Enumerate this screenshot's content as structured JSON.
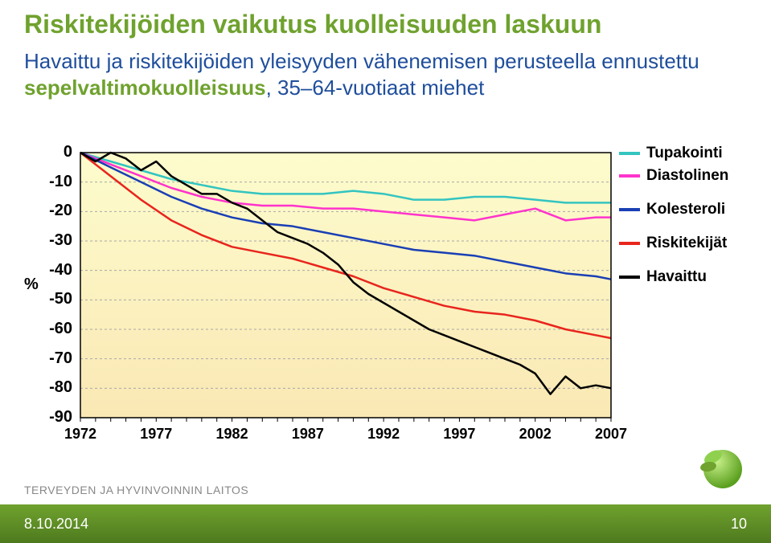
{
  "title": "Riskitekijöiden vaikutus kuolleisuuden laskuun",
  "subtitle_plain": "Havaittu ja riskitekijöiden yleisyyden vähenemisen perusteella ennustettu ",
  "subtitle_highlight": "sepelvaltimokuolleisuus",
  "subtitle_tail": ", 35–64-vuotiaat miehet",
  "footer": {
    "date": "8.10.2014",
    "page": "10"
  },
  "org": "TERVEYDEN JA HYVINVOINNIN LAITOS",
  "chart": {
    "type": "line",
    "y_unit": "%",
    "background_top": "#fdfccd",
    "background_bottom": "#fae8b4",
    "grid_color": "#a8a8a8",
    "axis_color": "#000000",
    "xlim": [
      1972,
      2007
    ],
    "ylim": [
      -90,
      0
    ],
    "ytick_step": 10,
    "yticks": [
      0,
      -10,
      -20,
      -30,
      -40,
      -50,
      -60,
      -70,
      -80,
      -90
    ],
    "xticks": [
      1972,
      1977,
      1982,
      1987,
      1992,
      1997,
      2002,
      2007
    ],
    "xtick_minor_step": 1,
    "line_width": 2.5,
    "legend": [
      {
        "label": "Tupakointi",
        "color": "#33c4c0"
      },
      {
        "label": "Diastolinen",
        "color": "#ff33cc"
      },
      {
        "label": "Kolesteroli",
        "color": "#1a3fb5"
      },
      {
        "label": "Riskitekijät",
        "color": "#e8251d"
      },
      {
        "label": "Havaittu",
        "color": "#000000"
      }
    ],
    "series": {
      "tupakointi": {
        "color": "#33c4c0",
        "data": [
          [
            1972,
            0
          ],
          [
            1974,
            -3
          ],
          [
            1976,
            -6
          ],
          [
            1978,
            -9
          ],
          [
            1980,
            -11
          ],
          [
            1982,
            -13
          ],
          [
            1984,
            -14
          ],
          [
            1986,
            -14
          ],
          [
            1988,
            -14
          ],
          [
            1990,
            -13
          ],
          [
            1992,
            -14
          ],
          [
            1994,
            -16
          ],
          [
            1996,
            -16
          ],
          [
            1998,
            -15
          ],
          [
            2000,
            -15
          ],
          [
            2002,
            -16
          ],
          [
            2004,
            -17
          ],
          [
            2006,
            -17
          ],
          [
            2007,
            -17
          ]
        ]
      },
      "diastolinen": {
        "color": "#ff33cc",
        "data": [
          [
            1972,
            0
          ],
          [
            1974,
            -4
          ],
          [
            1976,
            -8
          ],
          [
            1978,
            -12
          ],
          [
            1980,
            -15
          ],
          [
            1982,
            -17
          ],
          [
            1984,
            -18
          ],
          [
            1986,
            -18
          ],
          [
            1988,
            -19
          ],
          [
            1990,
            -19
          ],
          [
            1992,
            -20
          ],
          [
            1994,
            -21
          ],
          [
            1996,
            -22
          ],
          [
            1998,
            -23
          ],
          [
            2000,
            -21
          ],
          [
            2002,
            -19
          ],
          [
            2004,
            -23
          ],
          [
            2006,
            -22
          ],
          [
            2007,
            -22
          ]
        ]
      },
      "kolesteroli": {
        "color": "#1a3fb5",
        "data": [
          [
            1972,
            0
          ],
          [
            1974,
            -5
          ],
          [
            1976,
            -10
          ],
          [
            1978,
            -15
          ],
          [
            1980,
            -19
          ],
          [
            1982,
            -22
          ],
          [
            1984,
            -24
          ],
          [
            1986,
            -25
          ],
          [
            1988,
            -27
          ],
          [
            1990,
            -29
          ],
          [
            1992,
            -31
          ],
          [
            1994,
            -33
          ],
          [
            1996,
            -34
          ],
          [
            1998,
            -35
          ],
          [
            2000,
            -37
          ],
          [
            2002,
            -39
          ],
          [
            2004,
            -41
          ],
          [
            2006,
            -42
          ],
          [
            2007,
            -43
          ]
        ]
      },
      "riskitekijat": {
        "color": "#e8251d",
        "data": [
          [
            1972,
            0
          ],
          [
            1974,
            -8
          ],
          [
            1976,
            -16
          ],
          [
            1978,
            -23
          ],
          [
            1980,
            -28
          ],
          [
            1982,
            -32
          ],
          [
            1984,
            -34
          ],
          [
            1986,
            -36
          ],
          [
            1988,
            -39
          ],
          [
            1990,
            -42
          ],
          [
            1992,
            -46
          ],
          [
            1994,
            -49
          ],
          [
            1996,
            -52
          ],
          [
            1998,
            -54
          ],
          [
            2000,
            -55
          ],
          [
            2002,
            -57
          ],
          [
            2004,
            -60
          ],
          [
            2006,
            -62
          ],
          [
            2007,
            -63
          ]
        ]
      },
      "havaittu": {
        "color": "#000000",
        "data": [
          [
            1972,
            0
          ],
          [
            1973,
            -3
          ],
          [
            1974,
            0
          ],
          [
            1975,
            -2
          ],
          [
            1976,
            -6
          ],
          [
            1977,
            -3
          ],
          [
            1978,
            -8
          ],
          [
            1979,
            -11
          ],
          [
            1980,
            -14
          ],
          [
            1981,
            -14
          ],
          [
            1982,
            -17
          ],
          [
            1983,
            -19
          ],
          [
            1984,
            -23
          ],
          [
            1985,
            -27
          ],
          [
            1986,
            -29
          ],
          [
            1987,
            -31
          ],
          [
            1988,
            -34
          ],
          [
            1989,
            -38
          ],
          [
            1990,
            -44
          ],
          [
            1991,
            -48
          ],
          [
            1992,
            -51
          ],
          [
            1993,
            -54
          ],
          [
            1994,
            -57
          ],
          [
            1995,
            -60
          ],
          [
            1996,
            -62
          ],
          [
            1997,
            -64
          ],
          [
            1998,
            -66
          ],
          [
            1999,
            -68
          ],
          [
            2000,
            -70
          ],
          [
            2001,
            -72
          ],
          [
            2002,
            -75
          ],
          [
            2003,
            -82
          ],
          [
            2004,
            -76
          ],
          [
            2005,
            -80
          ],
          [
            2006,
            -79
          ],
          [
            2007,
            -80
          ]
        ]
      }
    }
  }
}
